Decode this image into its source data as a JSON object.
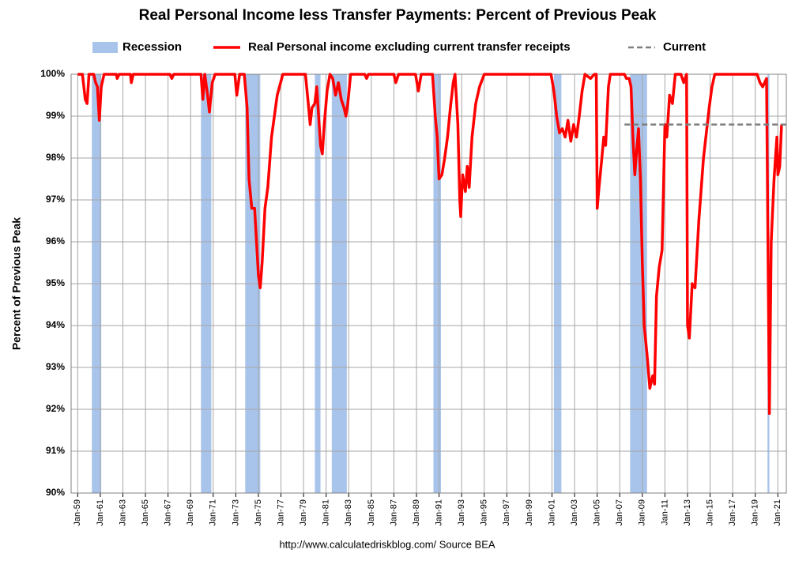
{
  "chart_data": {
    "type": "line",
    "title": "Real Personal Income less Transfer Payments: Percent of Previous Peak",
    "y_label": "Percent of Previous Peak",
    "source": "http://www.calculatedriskblog.com/   Source BEA",
    "recession_label": "Recession",
    "recession_color": "#a9c4eb",
    "recessions": [
      [
        "1960-04",
        "1961-02"
      ],
      [
        "1969-12",
        "1970-11"
      ],
      [
        "1973-11",
        "1975-03"
      ],
      [
        "1980-01",
        "1980-07"
      ],
      [
        "1981-07",
        "1982-11"
      ],
      [
        "1990-07",
        "1991-03"
      ],
      [
        "2001-03",
        "2001-11"
      ],
      [
        "2007-12",
        "2009-06"
      ],
      [
        "2020-02",
        "2020-04"
      ]
    ],
    "series": [
      {
        "name": "Real Personal income excluding current transfer receipts",
        "color": "#ff0000",
        "x": [
          "1959-01",
          "1959-06",
          "1959-09",
          "1959-11",
          "1960-01",
          "1960-06",
          "1960-08",
          "1960-10",
          "1960-12",
          "1961-02",
          "1961-05",
          "1962-06",
          "1962-07",
          "1962-09",
          "1963-09",
          "1963-10",
          "1963-12",
          "1967-03",
          "1967-05",
          "1967-07",
          "1969-12",
          "1970-02",
          "1970-04",
          "1970-07",
          "1970-09",
          "1970-12",
          "1971-03",
          "1972-12",
          "1973-02",
          "1973-05",
          "1973-10",
          "1974-01",
          "1974-03",
          "1974-06",
          "1974-09",
          "1974-11",
          "1975-01",
          "1975-03",
          "1975-05",
          "1975-08",
          "1975-11",
          "1976-03",
          "1976-09",
          "1977-03",
          "1979-03",
          "1979-06",
          "1979-08",
          "1979-10",
          "1980-01",
          "1980-03",
          "1980-05",
          "1980-07",
          "1980-09",
          "1980-11",
          "1981-02",
          "1981-05",
          "1981-08",
          "1981-11",
          "1982-02",
          "1982-05",
          "1982-08",
          "1982-10",
          "1982-12",
          "1983-03",
          "1984-06",
          "1984-08",
          "1984-10",
          "1987-01",
          "1987-03",
          "1987-06",
          "1988-12",
          "1989-03",
          "1989-06",
          "1990-06",
          "1990-09",
          "1990-11",
          "1991-01",
          "1991-04",
          "1991-07",
          "1991-10",
          "1992-01",
          "1992-04",
          "1992-06",
          "1992-09",
          "1992-11",
          "1992-12",
          "1993-02",
          "1993-05",
          "1993-07",
          "1993-09",
          "1993-12",
          "1994-04",
          "1994-08",
          "1995-01",
          "2000-12",
          "2001-03",
          "2001-06",
          "2001-09",
          "2001-12",
          "2002-03",
          "2002-06",
          "2002-09",
          "2002-12",
          "2003-03",
          "2003-06",
          "2003-09",
          "2003-12",
          "2004-06",
          "2004-10",
          "2004-12",
          "2005-01",
          "2005-03",
          "2005-06",
          "2005-08",
          "2005-10",
          "2006-01",
          "2006-03",
          "2007-06",
          "2007-08",
          "2007-11",
          "2008-01",
          "2008-03",
          "2008-05",
          "2008-07",
          "2008-09",
          "2008-11",
          "2009-01",
          "2009-03",
          "2009-06",
          "2009-09",
          "2009-12",
          "2010-02",
          "2010-04",
          "2010-07",
          "2010-10",
          "2011-01",
          "2011-03",
          "2011-06",
          "2011-09",
          "2011-12",
          "2012-06",
          "2012-09",
          "2012-12",
          "2013-01",
          "2013-03",
          "2013-06",
          "2013-09",
          "2014-01",
          "2014-06",
          "2014-12",
          "2015-03",
          "2015-06",
          "2019-03",
          "2019-06",
          "2019-09",
          "2020-01",
          "2020-04",
          "2020-06",
          "2020-09",
          "2020-12",
          "2021-01",
          "2021-03",
          "2021-05"
        ],
        "values": [
          100,
          100,
          99.4,
          99.3,
          100,
          100,
          99.8,
          99.7,
          98.9,
          99.7,
          100,
          100,
          99.9,
          100,
          100,
          99.8,
          100,
          100,
          99.9,
          100,
          100,
          99.4,
          100,
          99.5,
          99.1,
          99.8,
          100,
          100,
          99.5,
          100,
          100,
          99.2,
          97.5,
          96.8,
          96.8,
          96.0,
          95.2,
          94.9,
          95.5,
          96.8,
          97.3,
          98.5,
          99.5,
          100,
          100,
          99.3,
          98.8,
          99.2,
          99.3,
          99.7,
          99.0,
          98.3,
          98.1,
          98.8,
          99.6,
          100,
          99.9,
          99.5,
          99.8,
          99.4,
          99.2,
          99.0,
          99.3,
          100,
          100,
          99.9,
          100,
          100,
          99.8,
          100,
          100,
          99.6,
          100,
          100,
          99.0,
          98.5,
          97.5,
          97.6,
          98.0,
          98.5,
          99.2,
          99.8,
          100,
          98.8,
          97.0,
          96.6,
          97.6,
          97.2,
          97.8,
          97.3,
          98.5,
          99.3,
          99.7,
          100,
          100,
          99.6,
          99.0,
          98.6,
          98.7,
          98.5,
          98.9,
          98.4,
          98.8,
          98.5,
          99.0,
          99.6,
          100,
          99.9,
          100,
          100,
          96.8,
          97.3,
          98.0,
          98.5,
          98.3,
          99.7,
          100,
          100,
          99.9,
          99.9,
          99.7,
          98.5,
          97.6,
          98.2,
          98.7,
          97.5,
          95.5,
          94.0,
          93.3,
          92.5,
          92.8,
          92.6,
          94.7,
          95.4,
          95.8,
          98.8,
          98.5,
          99.5,
          99.3,
          100,
          100,
          99.8,
          100,
          94.0,
          93.7,
          95.0,
          94.9,
          96.5,
          98.0,
          99.2,
          99.7,
          100,
          100,
          99.8,
          99.7,
          99.9,
          91.9,
          96.0,
          97.5,
          98.5,
          97.6,
          97.8,
          98.8
        ]
      },
      {
        "name": "Current",
        "color": "#7f7f7f",
        "dashed": true,
        "x": [
          "2007-06",
          "2021-10"
        ],
        "values": [
          98.8,
          98.8
        ]
      }
    ],
    "xlim": [
      "1958-06",
      "2021-10"
    ],
    "xticks": [
      {
        "value": "1959-01",
        "label": "Jan-59"
      },
      {
        "value": "1961-01",
        "label": "Jan-61"
      },
      {
        "value": "1963-01",
        "label": "Jan-63"
      },
      {
        "value": "1965-01",
        "label": "Jan-65"
      },
      {
        "value": "1967-01",
        "label": "Jan-67"
      },
      {
        "value": "1969-01",
        "label": "Jan-69"
      },
      {
        "value": "1971-01",
        "label": "Jan-71"
      },
      {
        "value": "1973-01",
        "label": "Jan-73"
      },
      {
        "value": "1975-01",
        "label": "Jan-75"
      },
      {
        "value": "1977-01",
        "label": "Jan-77"
      },
      {
        "value": "1979-01",
        "label": "Jan-79"
      },
      {
        "value": "1981-01",
        "label": "Jan-81"
      },
      {
        "value": "1983-01",
        "label": "Jan-83"
      },
      {
        "value": "1985-01",
        "label": "Jan-85"
      },
      {
        "value": "1987-01",
        "label": "Jan-87"
      },
      {
        "value": "1989-01",
        "label": "Jan-89"
      },
      {
        "value": "1991-01",
        "label": "Jan-91"
      },
      {
        "value": "1993-01",
        "label": "Jan-93"
      },
      {
        "value": "1995-01",
        "label": "Jan-95"
      },
      {
        "value": "1997-01",
        "label": "Jan-97"
      },
      {
        "value": "1999-01",
        "label": "Jan-99"
      },
      {
        "value": "2001-01",
        "label": "Jan-01"
      },
      {
        "value": "2003-01",
        "label": "Jan-03"
      },
      {
        "value": "2005-01",
        "label": "Jan-05"
      },
      {
        "value": "2007-01",
        "label": "Jan-07"
      },
      {
        "value": "2009-01",
        "label": "Jan-09"
      },
      {
        "value": "2011-01",
        "label": "Jan-11"
      },
      {
        "value": "2013-01",
        "label": "Jan-13"
      },
      {
        "value": "2015-01",
        "label": "Jan-15"
      },
      {
        "value": "2017-01",
        "label": "Jan-17"
      },
      {
        "value": "2019-01",
        "label": "Jan-19"
      },
      {
        "value": "2021-01",
        "label": "Jan-21"
      }
    ],
    "ylim": [
      90,
      100
    ],
    "yticks": [
      {
        "value": 90,
        "label": "90%"
      },
      {
        "value": 91,
        "label": "91%"
      },
      {
        "value": 92,
        "label": "92%"
      },
      {
        "value": 93,
        "label": "93%"
      },
      {
        "value": 94,
        "label": "94%"
      },
      {
        "value": 95,
        "label": "95%"
      },
      {
        "value": 96,
        "label": "96%"
      },
      {
        "value": 97,
        "label": "97%"
      },
      {
        "value": 98,
        "label": "98%"
      },
      {
        "value": 99,
        "label": "99%"
      },
      {
        "value": 100,
        "label": "100%"
      }
    ],
    "grid": true
  }
}
